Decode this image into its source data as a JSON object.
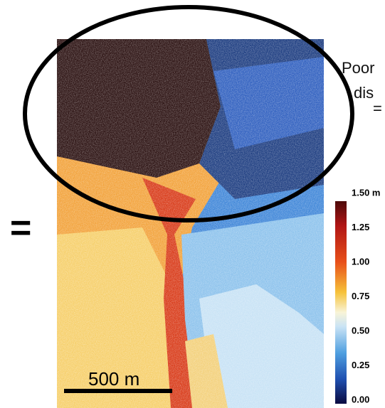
{
  "annotation": {
    "lines": [
      "Poor",
      "dis",
      "="
    ]
  },
  "equals_sign": "=",
  "scale_bar": {
    "label": "500 m"
  },
  "colorbar": {
    "ticks": [
      "1.50 m",
      "1.25",
      "1.00",
      "0.75",
      "0.50",
      "0.25",
      "0.00"
    ]
  }
}
